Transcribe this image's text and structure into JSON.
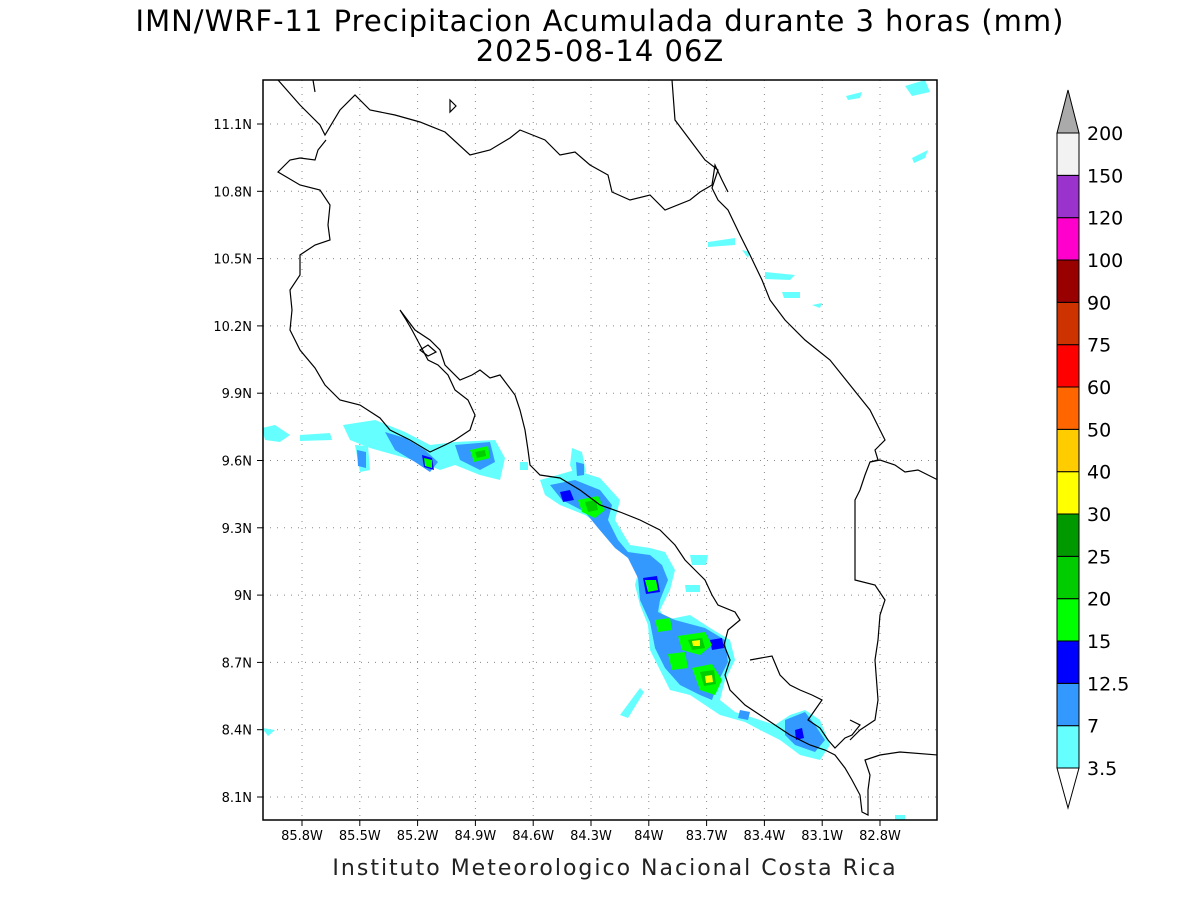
{
  "title_line1": "IMN/WRF-11 Precipitacion Acumulada durante 3 horas (mm)",
  "title_line2": "2025-08-14 06Z",
  "footer": "Instituto Meteorologico Nacional Costa Rica",
  "axes": {
    "lon_ticks": [
      "85.8W",
      "85.5W",
      "85.2W",
      "84.9W",
      "84.6W",
      "84.3W",
      "84W",
      "83.7W",
      "83.4W",
      "83.1W",
      "82.8W"
    ],
    "lat_ticks": [
      "11.1N",
      "10.8N",
      "10.5N",
      "10.2N",
      "9.9N",
      "9.6N",
      "9.3N",
      "9N",
      "8.7N",
      "8.4N",
      "8.1N"
    ],
    "grid": "dotted"
  },
  "colorbar": {
    "labels": [
      "3.5",
      "7",
      "12.5",
      "15",
      "20",
      "25",
      "30",
      "40",
      "50",
      "60",
      "75",
      "90",
      "100",
      "120",
      "150",
      "200"
    ],
    "colors": [
      "#ffffff",
      "#66ffff",
      "#3399ff",
      "#0000ff",
      "#00ff00",
      "#00cc00",
      "#009900",
      "#ffff00",
      "#ffcc00",
      "#ff6600",
      "#ff0000",
      "#cc3300",
      "#990000",
      "#ff00cc",
      "#9933cc",
      "#f2f2f2",
      "#aaaaaa"
    ]
  }
}
